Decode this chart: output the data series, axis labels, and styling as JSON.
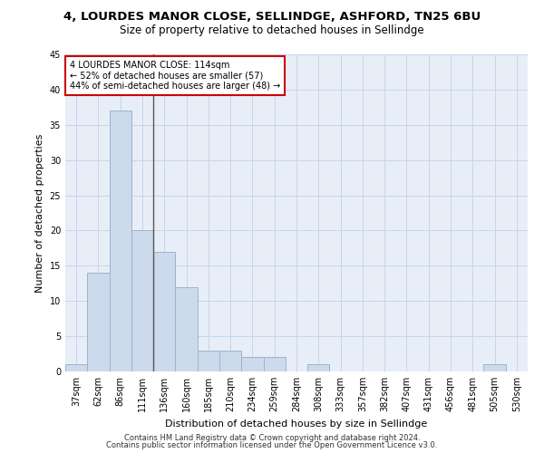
{
  "title1": "4, LOURDES MANOR CLOSE, SELLINDGE, ASHFORD, TN25 6BU",
  "title2": "Size of property relative to detached houses in Sellindge",
  "xlabel": "Distribution of detached houses by size in Sellindge",
  "ylabel": "Number of detached properties",
  "categories": [
    "37sqm",
    "62sqm",
    "86sqm",
    "111sqm",
    "136sqm",
    "160sqm",
    "185sqm",
    "210sqm",
    "234sqm",
    "259sqm",
    "284sqm",
    "308sqm",
    "333sqm",
    "357sqm",
    "382sqm",
    "407sqm",
    "431sqm",
    "456sqm",
    "481sqm",
    "505sqm",
    "530sqm"
  ],
  "values": [
    1,
    14,
    37,
    20,
    17,
    12,
    3,
    3,
    2,
    2,
    0,
    1,
    0,
    0,
    0,
    0,
    0,
    0,
    0,
    1,
    0
  ],
  "bar_color": "#ccdaeb",
  "bar_edge_color": "#9ab4cf",
  "marker_line_color": "#555555",
  "annotation_line1": "4 LOURDES MANOR CLOSE: 114sqm",
  "annotation_line2": "← 52% of detached houses are smaller (57)",
  "annotation_line3": "44% of semi-detached houses are larger (48) →",
  "annotation_box_color": "#ffffff",
  "annotation_box_edge": "#cc0000",
  "ylim": [
    0,
    45
  ],
  "yticks": [
    0,
    5,
    10,
    15,
    20,
    25,
    30,
    35,
    40,
    45
  ],
  "grid_color": "#c8d4e8",
  "background_color": "#e8eef8",
  "footer1": "Contains HM Land Registry data © Crown copyright and database right 2024.",
  "footer2": "Contains public sector information licensed under the Open Government Licence v3.0.",
  "title1_fontsize": 9.5,
  "title2_fontsize": 8.5,
  "xlabel_fontsize": 8,
  "ylabel_fontsize": 8,
  "tick_fontsize": 7,
  "annotation_fontsize": 7,
  "footer_fontsize": 6
}
